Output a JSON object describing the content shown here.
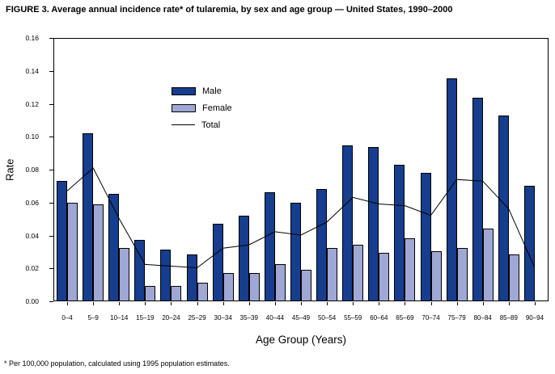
{
  "title": "FIGURE 3. Average annual incidence rate* of tularemia, by sex and age group — United States, 1990–2000",
  "footnote": "* Per 100,000 population, calculated using 1995 population estimates.",
  "chart_data": {
    "type": "bar",
    "subtype": "grouped-bars-with-line-overlay",
    "title": "FIGURE 3. Average annual incidence rate* of tularemia, by sex and age group — United States, 1990–2000",
    "xlabel": "Age Group (Years)",
    "ylabel": "Rate",
    "ylim": [
      0,
      0.16
    ],
    "ytick_step": 0.02,
    "yticks": [
      "0.00",
      "0.02",
      "0.04",
      "0.06",
      "0.08",
      "0.10",
      "0.12",
      "0.14",
      "0.16"
    ],
    "grid": false,
    "legend_position": "inside-top-left",
    "axis_color": "#000000",
    "categories": [
      "0–4",
      "5–9",
      "10–14",
      "15–19",
      "20–24",
      "25–29",
      "30–34",
      "35–39",
      "40–44",
      "45–49",
      "50–54",
      "55–59",
      "60–64",
      "65–69",
      "70–74",
      "75–79",
      "80–84",
      "85–89",
      "90–94"
    ],
    "series": [
      {
        "name": "Male",
        "type": "bar",
        "color": "#163d8e",
        "values": [
          0.073,
          0.102,
          0.065,
          0.037,
          0.031,
          0.028,
          0.047,
          0.052,
          0.066,
          0.06,
          0.068,
          0.095,
          0.094,
          0.083,
          0.078,
          0.136,
          0.124,
          0.113,
          0.07
        ]
      },
      {
        "name": "Female",
        "type": "bar",
        "color": "#9fa7d4",
        "values": [
          0.06,
          0.059,
          0.032,
          0.009,
          0.009,
          0.011,
          0.017,
          0.017,
          0.022,
          0.019,
          0.032,
          0.034,
          0.029,
          0.038,
          0.03,
          0.032,
          0.044,
          0.028,
          0
        ]
      },
      {
        "name": "Total",
        "type": "line",
        "color": "#000000",
        "values": [
          0.067,
          0.081,
          0.05,
          0.022,
          0.021,
          0.02,
          0.032,
          0.034,
          0.042,
          0.04,
          0.048,
          0.063,
          0.059,
          0.058,
          0.052,
          0.074,
          0.073,
          0.056,
          0.02
        ]
      }
    ]
  }
}
